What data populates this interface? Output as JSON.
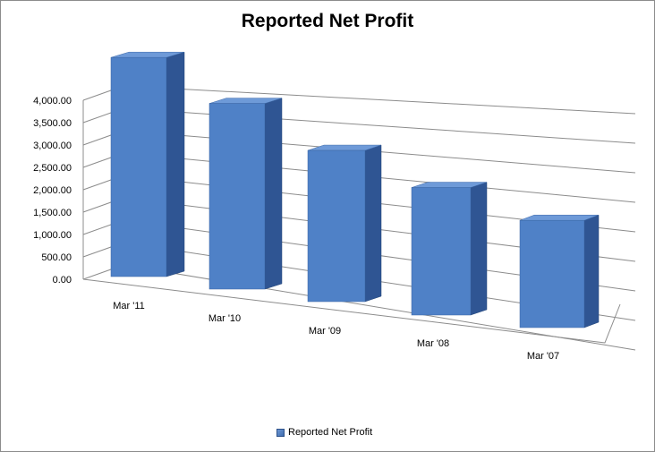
{
  "title": "Reported Net Profit",
  "legend": {
    "label": "Reported Net Profit"
  },
  "colors": {
    "bar_front": "#4f81c7",
    "bar_side": "#2f5593",
    "bar_top": "#6e9ad8",
    "grid": "#8c8c8c",
    "text": "#000000"
  },
  "chart_data": {
    "type": "bar",
    "style": "3d-perspective",
    "title": "Reported Net Profit",
    "xlabel": "",
    "ylabel": "",
    "categories": [
      "Mar '11",
      "Mar '10",
      "Mar '09",
      "Mar '08",
      "Mar '07"
    ],
    "series": [
      {
        "name": "Reported Net Profit",
        "values": [
          3600,
          3050,
          2550,
          2200,
          1850
        ]
      }
    ],
    "ylim": [
      0,
      4000
    ],
    "yticks": [
      0,
      500,
      1000,
      1500,
      2000,
      2500,
      3000,
      3500,
      4000
    ],
    "ytick_labels": [
      "0.00",
      "500.00",
      "1,000.00",
      "1,500.00",
      "2,000.00",
      "2,500.00",
      "3,000.00",
      "3,500.00",
      "4,000.00"
    ],
    "grid": true,
    "legend_position": "bottom"
  }
}
